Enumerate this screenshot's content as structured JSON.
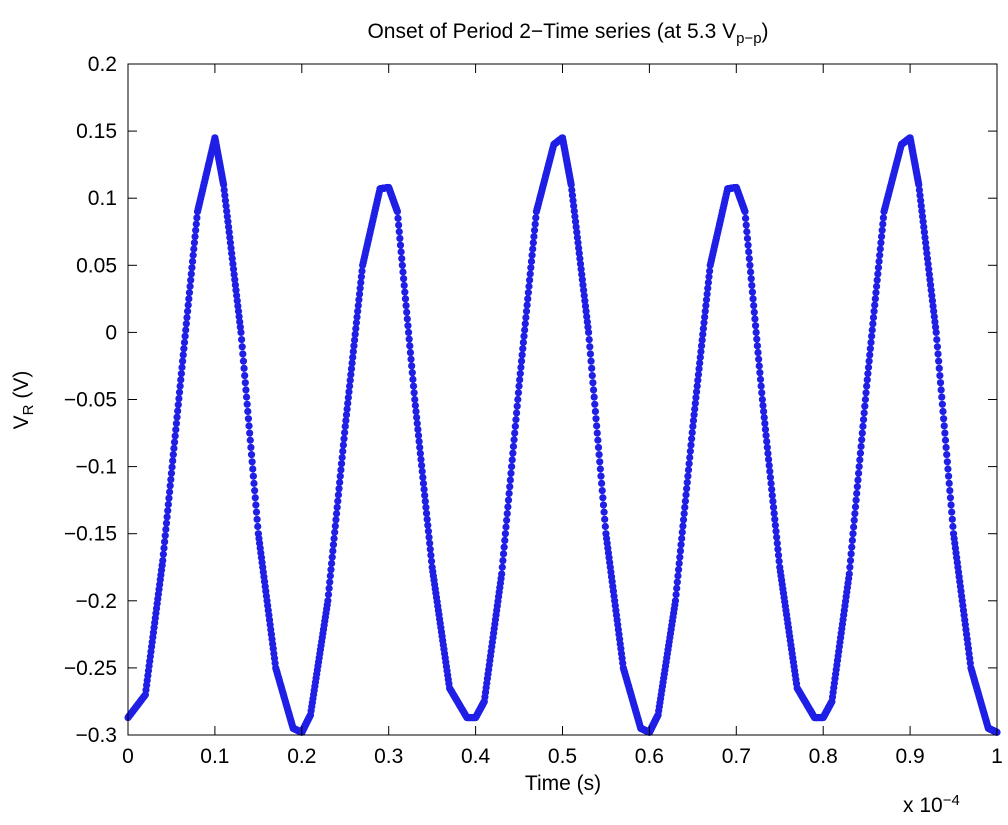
{
  "chart_data": {
    "type": "scatter",
    "title_main": "Onset of Period 2−Time series (at 5.3 V",
    "title_sub": "p−p",
    "title_close": ")",
    "xlabel": "Time (s)",
    "ylabel_main": "V",
    "ylabel_sub": "R",
    "ylabel_units": " (V)",
    "x_exponent_base": "x 10",
    "x_exponent_power": "−4",
    "x_scale": 0.0001,
    "xlim": [
      0,
      1
    ],
    "ylim": [
      -0.3,
      0.2
    ],
    "x_ticks": [
      "0",
      "0.1",
      "0.2",
      "0.3",
      "0.4",
      "0.5",
      "0.6",
      "0.7",
      "0.8",
      "0.9",
      "1"
    ],
    "y_ticks": [
      "0.2",
      "0.15",
      "0.1",
      "0.05",
      "0",
      "−0.05",
      "−0.1",
      "−0.15",
      "−0.2",
      "−0.25",
      "−0.3"
    ],
    "grid": false,
    "marker_color": "#1f1fe6",
    "series": [
      {
        "x": [
          0.0,
          0.02,
          0.04,
          0.06,
          0.08,
          0.1,
          0.11,
          0.13,
          0.15,
          0.17,
          0.19,
          0.2,
          0.21,
          0.23,
          0.25,
          0.27,
          0.29,
          0.3,
          0.31,
          0.33,
          0.35,
          0.37,
          0.39,
          0.4,
          0.41,
          0.43,
          0.45,
          0.47,
          0.49,
          0.5,
          0.51,
          0.53,
          0.55,
          0.57,
          0.59,
          0.6,
          0.61,
          0.63,
          0.65,
          0.67,
          0.69,
          0.7,
          0.71,
          0.73,
          0.75,
          0.77,
          0.79,
          0.8,
          0.81,
          0.83,
          0.85,
          0.87,
          0.89,
          0.9,
          0.91,
          0.93,
          0.95,
          0.97,
          0.99,
          1.0
        ],
        "y": [
          -0.287,
          -0.27,
          -0.17,
          -0.04,
          0.09,
          0.145,
          0.11,
          0.0,
          -0.15,
          -0.25,
          -0.295,
          -0.298,
          -0.285,
          -0.2,
          -0.07,
          0.05,
          0.107,
          0.108,
          0.09,
          -0.05,
          -0.175,
          -0.265,
          -0.287,
          -0.287,
          -0.275,
          -0.18,
          -0.04,
          0.09,
          0.14,
          0.145,
          0.11,
          0.0,
          -0.15,
          -0.25,
          -0.295,
          -0.298,
          -0.285,
          -0.2,
          -0.07,
          0.05,
          0.107,
          0.108,
          0.09,
          -0.05,
          -0.175,
          -0.265,
          -0.287,
          -0.287,
          -0.275,
          -0.18,
          -0.04,
          0.09,
          0.14,
          0.145,
          0.11,
          0.0,
          -0.15,
          -0.25,
          -0.295,
          -0.298
        ]
      }
    ]
  }
}
